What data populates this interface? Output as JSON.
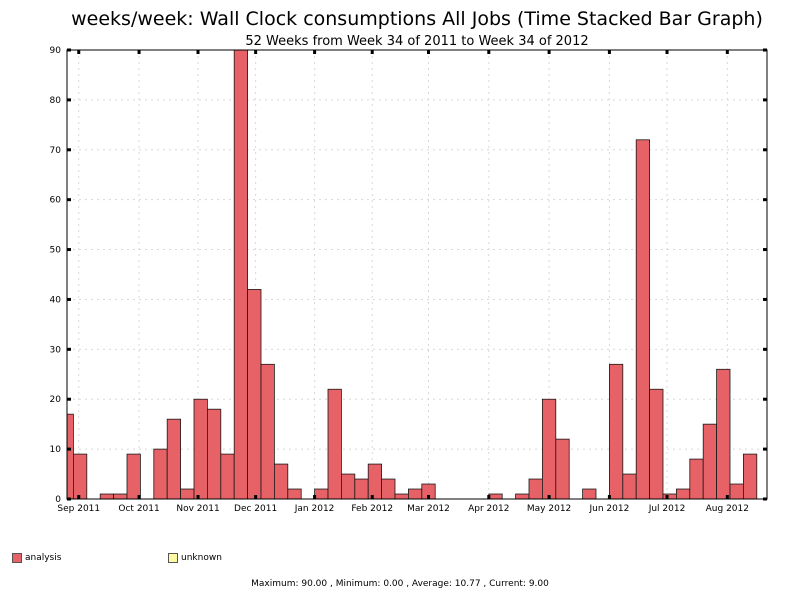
{
  "title": "weeks/week: Wall Clock consumptions All Jobs (Time Stacked Bar Graph)",
  "subtitle": "52 Weeks from Week 34 of 2011 to Week 34 of 2012",
  "colors": {
    "analysis": "#e66266",
    "unknown": "#fff8a3",
    "grid": "#d8d8d8",
    "axis": "#000000"
  },
  "chart_data": {
    "type": "bar",
    "stacked": true,
    "title": "weeks/week: Wall Clock consumptions All Jobs (Time Stacked Bar Graph)",
    "subtitle": "52 Weeks from Week 34 of 2011 to Week 34 of 2012",
    "xlabel": "",
    "ylabel": "",
    "ylim": [
      0,
      90
    ],
    "yticks": [
      0,
      10,
      20,
      30,
      40,
      50,
      60,
      70,
      80,
      90
    ],
    "grid": true,
    "legend_position": "bottom",
    "x_tick_labels": [
      "Sep 2011",
      "Oct 2011",
      "Nov 2011",
      "Dec 2011",
      "Jan 2012",
      "Feb 2012",
      "Mar 2012",
      "Apr 2012",
      "May 2012",
      "Jun 2012",
      "Jul 2012",
      "Aug 2012"
    ],
    "series": [
      {
        "name": "analysis",
        "values": [
          17,
          9,
          0,
          1,
          1,
          9,
          0,
          10,
          16,
          2,
          20,
          18,
          9,
          90,
          42,
          27,
          7,
          2,
          0,
          2,
          22,
          5,
          4,
          7,
          4,
          1,
          2,
          3,
          0,
          0,
          0,
          0,
          1,
          0,
          1,
          4,
          20,
          12,
          0,
          2,
          0,
          27,
          5,
          72,
          22,
          1,
          2,
          8,
          15,
          26,
          3,
          9
        ]
      },
      {
        "name": "unknown",
        "values": [
          0,
          0,
          0,
          0,
          0,
          0,
          0,
          0,
          0,
          0,
          0,
          0,
          0,
          0,
          0,
          0,
          0,
          0,
          0,
          0,
          0,
          0,
          0,
          0,
          0,
          0,
          0,
          0,
          0,
          0,
          0,
          0,
          0,
          0,
          0,
          0,
          0,
          0,
          0,
          0,
          0,
          0,
          0,
          0,
          0,
          0,
          0,
          0,
          0,
          0,
          0,
          0
        ]
      }
    ]
  },
  "legend": [
    {
      "name": "analysis"
    },
    {
      "name": "unknown"
    }
  ],
  "footer": {
    "text": "Maximum: 90.00 , Minimum: 0.00 , Average: 10.77 , Current: 9.00"
  }
}
